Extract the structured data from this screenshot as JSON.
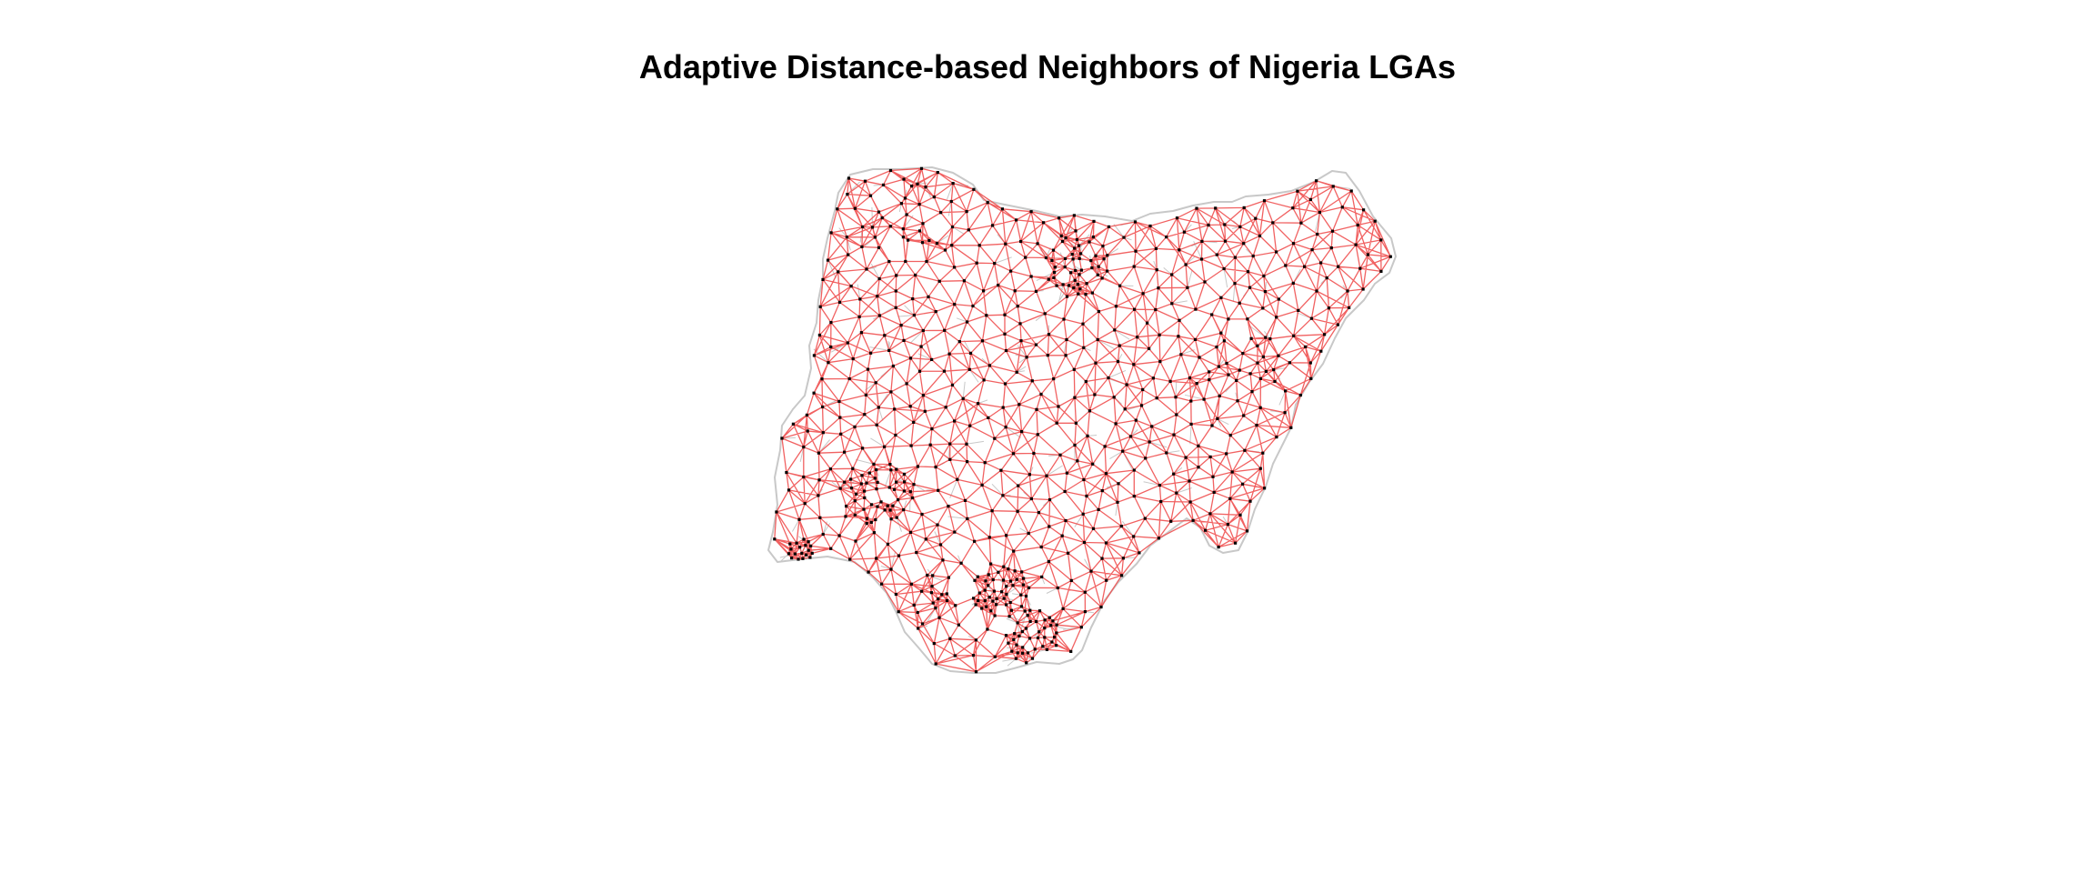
{
  "title": "Adaptive Distance-based Neighbors of Nigeria LGAs",
  "colors": {
    "background": "#ffffff",
    "boundary": "#c8c8c8",
    "neighbor_link": "#f05050",
    "centroid": "#000000",
    "title": "#000000"
  },
  "legend": "none",
  "grid": false,
  "axes": false
}
